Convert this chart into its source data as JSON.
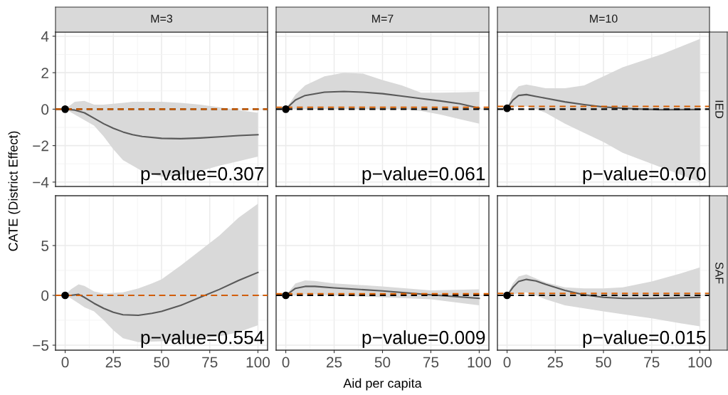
{
  "chart_data": [
    {
      "type": "line",
      "title": "M=3",
      "ylabel": "CATE (District Effect)",
      "xlim": [
        -5,
        105
      ],
      "xticks": [
        0,
        25,
        50,
        75,
        100
      ],
      "ylim": [
        -4.24,
        4.23
      ],
      "yticks": [
        -4,
        -2,
        0,
        2,
        4
      ],
      "tick_labels": "y",
      "grid": true,
      "series": [
        {
          "color": "#595959",
          "x": [
            0,
            5,
            10,
            15,
            20,
            25,
            30,
            35,
            40,
            50,
            60,
            70,
            80,
            90,
            100
          ],
          "values": [
            0,
            -0.05,
            -0.2,
            -0.5,
            -0.8,
            -1.05,
            -1.25,
            -1.4,
            -1.5,
            -1.6,
            -1.62,
            -1.58,
            -1.52,
            -1.45,
            -1.4
          ],
          "lower": [
            0,
            -0.3,
            -0.6,
            -0.9,
            -1.5,
            -2.2,
            -2.8,
            -3.1,
            -3.4,
            -3.7,
            -3.6,
            -3.4,
            -3.1,
            -2.85,
            -2.6
          ],
          "upper": [
            0,
            0.4,
            0.45,
            0.25,
            0.25,
            0.3,
            0.35,
            0.4,
            0.4,
            0.4,
            0.35,
            0.25,
            0.1,
            -0.05,
            -0.2
          ]
        },
        {
          "type": "scatter",
          "color": "#000000",
          "x": [
            0
          ],
          "values": [
            0
          ]
        }
      ],
      "ref_lines": [
        {
          "axis": "y",
          "value": 0,
          "color": "#000000",
          "line_style": "dashed"
        },
        {
          "axis": "y",
          "value": 0,
          "color": "#d55e00",
          "line_style": "dashed"
        }
      ],
      "annotations": [
        "p−value=0.307"
      ]
    },
    {
      "type": "line",
      "title": "M=7",
      "xlim": [
        -5,
        105
      ],
      "xticks": [
        0,
        25,
        50,
        75,
        100
      ],
      "ylim": [
        -4.24,
        4.23
      ],
      "yticks": [
        -4,
        -2,
        0,
        2,
        4
      ],
      "tick_labels": false,
      "grid": true,
      "series": [
        {
          "color": "#595959",
          "x": [
            0,
            5,
            10,
            20,
            30,
            40,
            50,
            60,
            70,
            80,
            90,
            100
          ],
          "values": [
            0,
            0.5,
            0.75,
            0.93,
            0.97,
            0.93,
            0.85,
            0.72,
            0.58,
            0.45,
            0.3,
            0.05
          ],
          "lower": [
            0,
            0,
            0,
            0,
            0,
            0,
            0,
            0,
            -0.1,
            -0.3,
            -0.55,
            -0.8
          ],
          "upper": [
            0,
            0.8,
            1.3,
            1.8,
            2.0,
            1.95,
            1.6,
            1.3,
            0.9,
            0.9,
            0.92,
            0.95
          ]
        },
        {
          "type": "scatter",
          "color": "#000000",
          "x": [
            0
          ],
          "values": [
            0
          ]
        }
      ],
      "ref_lines": [
        {
          "axis": "y",
          "value": 0,
          "color": "#000000",
          "line_style": "dashed"
        },
        {
          "axis": "y",
          "value": 0.1,
          "color": "#d55e00",
          "line_style": "dashed"
        }
      ],
      "annotations": [
        "p−value=0.061"
      ]
    },
    {
      "type": "line",
      "title": "M=10",
      "y2label": "IED",
      "xlim": [
        -5,
        105
      ],
      "xticks": [
        0,
        25,
        50,
        75,
        100
      ],
      "ylim": [
        -4.24,
        4.23
      ],
      "yticks": [
        -4,
        -2,
        0,
        2,
        4
      ],
      "tick_labels": false,
      "grid": true,
      "series": [
        {
          "color": "#595959",
          "x": [
            0,
            3,
            6,
            10,
            15,
            20,
            30,
            40,
            50,
            60,
            70,
            80,
            100
          ],
          "values": [
            0.05,
            0.5,
            0.75,
            0.8,
            0.7,
            0.6,
            0.4,
            0.25,
            0.12,
            0.05,
            0.0,
            -0.03,
            -0.02
          ],
          "lower": [
            0.05,
            0.1,
            0.15,
            0.15,
            0.0,
            -0.2,
            -0.8,
            -1.3,
            -1.8,
            -2.4,
            -2.8,
            -3.2,
            -4.0
          ],
          "upper": [
            0.05,
            0.9,
            1.25,
            1.35,
            1.25,
            1.15,
            1.15,
            1.3,
            1.8,
            2.3,
            2.65,
            3.0,
            3.85
          ]
        },
        {
          "type": "scatter",
          "color": "#000000",
          "x": [
            0
          ],
          "values": [
            0.05
          ]
        }
      ],
      "ref_lines": [
        {
          "axis": "y",
          "value": 0,
          "color": "#000000",
          "line_style": "dashed"
        },
        {
          "axis": "y",
          "value": 0.15,
          "color": "#d55e00",
          "line_style": "dashed"
        }
      ],
      "annotations": [
        "p−value=0.070"
      ]
    },
    {
      "type": "line",
      "xlim": [
        -5,
        105
      ],
      "xticks": [
        0,
        25,
        50,
        75,
        100
      ],
      "ylim": [
        -5.5,
        10
      ],
      "yticks": [
        -5,
        0,
        5
      ],
      "grid": true,
      "series": [
        {
          "color": "#595959",
          "x": [
            0,
            3,
            7,
            10,
            15,
            20,
            25,
            30,
            38,
            45,
            50,
            60,
            70,
            80,
            90,
            100
          ],
          "values": [
            0,
            0,
            0.1,
            -0.2,
            -0.8,
            -1.3,
            -1.7,
            -1.95,
            -2.0,
            -1.8,
            -1.6,
            -1.0,
            -0.2,
            0.6,
            1.5,
            2.3
          ],
          "lower": [
            0,
            -0.3,
            -0.8,
            -1.2,
            -1.6,
            -2.5,
            -3.5,
            -4.3,
            -4.7,
            -4.65,
            -4.6,
            -4.5,
            -4.3,
            -4.1,
            -3.7,
            -3.0
          ],
          "upper": [
            0,
            0.6,
            1.1,
            0.95,
            0.4,
            0.2,
            0.25,
            0.3,
            0.7,
            1.2,
            1.6,
            3.0,
            4.5,
            6.0,
            7.8,
            9.2
          ]
        },
        {
          "type": "scatter",
          "color": "#000000",
          "x": [
            0
          ],
          "values": [
            0
          ]
        }
      ],
      "ref_lines": [
        {
          "axis": "y",
          "value": 0,
          "color": "#000000",
          "line_style": "dashed"
        },
        {
          "axis": "y",
          "value": 0,
          "color": "#d55e00",
          "line_style": "dashed"
        }
      ],
      "annotations": [
        "p−value=0.554"
      ]
    },
    {
      "type": "line",
      "xlabel": "Aid per capita",
      "xlim": [
        -5,
        105
      ],
      "xticks": [
        0,
        25,
        50,
        75,
        100
      ],
      "ylim": [
        -5.5,
        10
      ],
      "yticks": [
        -5,
        0,
        5
      ],
      "tick_labels": "x",
      "grid": true,
      "series": [
        {
          "color": "#595959",
          "x": [
            0,
            5,
            10,
            15,
            25,
            50,
            75,
            100
          ],
          "values": [
            0,
            0.7,
            0.9,
            0.9,
            0.75,
            0.45,
            0.05,
            -0.3
          ],
          "lower": [
            0,
            0,
            0.1,
            0.1,
            0,
            -0.2,
            -0.4,
            -1.0
          ],
          "upper": [
            0,
            1.2,
            1.5,
            1.45,
            1.2,
            0.9,
            0.5,
            0.6
          ]
        },
        {
          "type": "scatter",
          "color": "#000000",
          "x": [
            0
          ],
          "values": [
            0
          ]
        }
      ],
      "ref_lines": [
        {
          "axis": "y",
          "value": 0,
          "color": "#000000",
          "line_style": "dashed"
        },
        {
          "axis": "y",
          "value": 0.15,
          "color": "#d55e00",
          "line_style": "dashed"
        }
      ],
      "annotations": [
        "p−value=0.009"
      ]
    },
    {
      "type": "line",
      "y2label": "SAF",
      "xlim": [
        -5,
        105
      ],
      "xticks": [
        0,
        25,
        50,
        75,
        100
      ],
      "ylim": [
        -5.5,
        10
      ],
      "yticks": [
        -5,
        0,
        5
      ],
      "tick_labels": "x",
      "grid": true,
      "series": [
        {
          "color": "#595959",
          "x": [
            0,
            3,
            6,
            10,
            15,
            20,
            30,
            40,
            50,
            60,
            75,
            90,
            100
          ],
          "values": [
            0,
            0.8,
            1.4,
            1.6,
            1.45,
            1.1,
            0.5,
            0.05,
            -0.2,
            -0.3,
            -0.3,
            -0.25,
            -0.2
          ],
          "lower": [
            0,
            0.1,
            0.2,
            0.3,
            0.0,
            -0.4,
            -1.0,
            -1.3,
            -1.6,
            -1.9,
            -2.3,
            -2.8,
            -3.1
          ],
          "upper": [
            0,
            1.2,
            1.9,
            2.1,
            1.7,
            1.3,
            0.8,
            0.7,
            0.7,
            0.8,
            1.4,
            2.2,
            2.8
          ]
        },
        {
          "type": "scatter",
          "color": "#000000",
          "x": [
            0
          ],
          "values": [
            0
          ]
        }
      ],
      "ref_lines": [
        {
          "axis": "y",
          "value": 0,
          "color": "#000000",
          "line_style": "dashed"
        },
        {
          "axis": "y",
          "value": 0.2,
          "color": "#d55e00",
          "line_style": "dashed"
        }
      ],
      "annotations": [
        "p−value=0.015"
      ]
    }
  ]
}
